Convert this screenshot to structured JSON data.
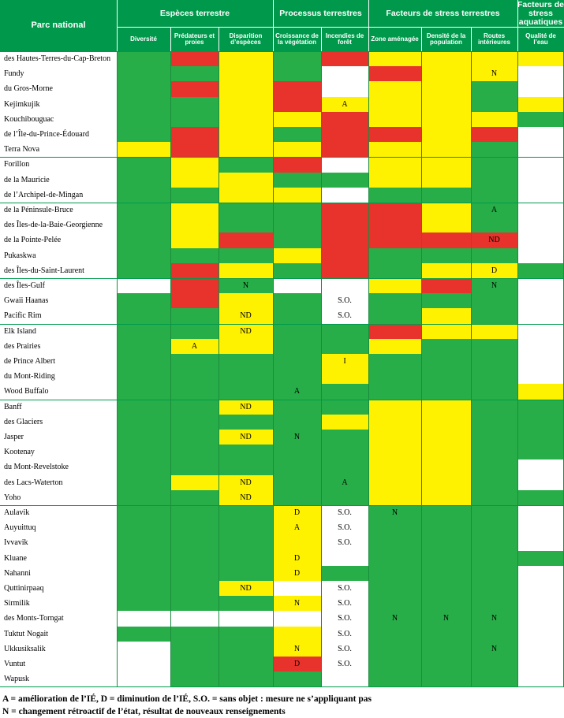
{
  "colors": {
    "header": "#00994c",
    "good": "#27ae48",
    "fair": "#fff200",
    "poor": "#e8322c",
    "none": "#ffffff"
  },
  "header": {
    "corner": "Parc national",
    "groups": [
      "Espèces terrestre",
      "Processus terrestres",
      "Facteurs de stress terrestres",
      "Facteurs de stress aquatiques"
    ],
    "columns": [
      "Diversité",
      "Prédateurs et proies",
      "Disparition d’espèces",
      "Croissance de la végétation",
      "Incendies de forêt",
      "Zone aménagée",
      "Densité de la population",
      "Routes intérieures",
      "Qualité de l’eau"
    ]
  },
  "parks": [
    "des Hautes-Terres-du-Cap-Breton",
    "Fundy",
    "du Gros-Morne",
    "Kejimkujik",
    "Kouchibouguac",
    "de l’Île-du-Prince-Édouard",
    "Terra Nova",
    "Forillon",
    "de la Mauricie",
    "de l’Archipel-de-Mingan",
    "de la Péninsule-Bruce",
    "des Îles-de-la-Baie-Georgienne",
    "de la Pointe-Pelée",
    "Pukaskwa",
    "des Îles-du-Saint-Laurent",
    "des Îles-Gulf",
    "Gwaii Haanas",
    "Pacific Rim",
    "Elk Island",
    "des Prairies",
    "de Prince Albert",
    "du Mont-Riding",
    "Wood Buffalo",
    "Banff",
    "des Glaciers",
    "Jasper",
    "Kootenay",
    "du Mont-Revelstoke",
    "des Lacs-Waterton",
    "Yoho",
    "Aulavik",
    "Auyuittuq",
    "Ivvavik",
    "Kluane",
    "Nahanni",
    "Quttinirpaaq",
    "Sirmilik",
    "des Monts-Torngat",
    "Tuktut Nogait",
    "Ukkusiksalik",
    "Vuntut",
    "Wapusk"
  ],
  "status": [
    "GRYGRYYYY",
    "GGYGWRYYW",
    "GRYRWYYGW",
    "GGYRYYYGY",
    "GGYYRYYYG",
    "GRYGRRYRW",
    "YRYYRYYGW",
    "GYGRWYYGW",
    "GYYGGYYGW",
    "GGYYWGGGW",
    "GYGGRRYGW",
    "GYGGRRYGW",
    "GYRGRRRRW",
    "GGGYRGGGW",
    "GRYGRGYYG",
    "WRGWWYRGW",
    "GRYGWGGGW",
    "GGYGWGYGW",
    "GGYGGRYYW",
    "GYYGGYGGW",
    "GGGGYGGGW",
    "GGGGYGGGW",
    "GGGGGGGGY",
    "GGYGGYYGG",
    "GGGGYYYGG",
    "GGYGGYYGG",
    "GGGGGYYGG",
    "GGGGGYYGW",
    "GYYGGYYGW",
    "GGYGGYYGG",
    "GGGYWGGGW",
    "GGGYWGGGW",
    "GGGYWGGGW",
    "GGGYWGGGG",
    "GGGYGGGGW",
    "GGYWWGGGW",
    "GGGYWGGGW",
    "WWWWWGGGW",
    "GGGYWGGGW",
    "WGGYWGGGW",
    "WGGRWGGGW",
    "WGGGWGGGW"
  ],
  "codes": [
    {
      "r": 1,
      "c": 7,
      "t": "N"
    },
    {
      "r": 3,
      "c": 4,
      "t": "A"
    },
    {
      "r": 10,
      "c": 7,
      "t": "A"
    },
    {
      "r": 12,
      "c": 7,
      "t": "ND"
    },
    {
      "r": 14,
      "c": 7,
      "t": "D"
    },
    {
      "r": 15,
      "c": 2,
      "t": "N"
    },
    {
      "r": 15,
      "c": 7,
      "t": "N"
    },
    {
      "r": 16,
      "c": 4,
      "t": "S.O."
    },
    {
      "r": 17,
      "c": 2,
      "t": "ND"
    },
    {
      "r": 17,
      "c": 4,
      "t": "S.O."
    },
    {
      "r": 18,
      "c": 2,
      "t": "ND"
    },
    {
      "r": 19,
      "c": 1,
      "t": "A"
    },
    {
      "r": 20,
      "c": 4,
      "t": "I"
    },
    {
      "r": 22,
      "c": 3,
      "t": "A"
    },
    {
      "r": 23,
      "c": 2,
      "t": "ND"
    },
    {
      "r": 25,
      "c": 2,
      "t": "ND"
    },
    {
      "r": 25,
      "c": 3,
      "t": "N"
    },
    {
      "r": 28,
      "c": 2,
      "t": "ND"
    },
    {
      "r": 28,
      "c": 4,
      "t": "A"
    },
    {
      "r": 29,
      "c": 2,
      "t": "ND"
    },
    {
      "r": 30,
      "c": 3,
      "t": "D"
    },
    {
      "r": 30,
      "c": 4,
      "t": "S.O."
    },
    {
      "r": 30,
      "c": 5,
      "t": "N"
    },
    {
      "r": 31,
      "c": 3,
      "t": "A"
    },
    {
      "r": 31,
      "c": 4,
      "t": "S.O."
    },
    {
      "r": 32,
      "c": 4,
      "t": "S.O."
    },
    {
      "r": 33,
      "c": 3,
      "t": "D"
    },
    {
      "r": 34,
      "c": 3,
      "t": "D"
    },
    {
      "r": 35,
      "c": 2,
      "t": "ND"
    },
    {
      "r": 35,
      "c": 4,
      "t": "S.O."
    },
    {
      "r": 36,
      "c": 3,
      "t": "N"
    },
    {
      "r": 36,
      "c": 4,
      "t": "S.O."
    },
    {
      "r": 37,
      "c": 4,
      "t": "S.O."
    },
    {
      "r": 37,
      "c": 5,
      "t": "N"
    },
    {
      "r": 37,
      "c": 6,
      "t": "N"
    },
    {
      "r": 37,
      "c": 7,
      "t": "N"
    },
    {
      "r": 38,
      "c": 4,
      "t": "S.O."
    },
    {
      "r": 39,
      "c": 3,
      "t": "N"
    },
    {
      "r": 39,
      "c": 4,
      "t": "S.O."
    },
    {
      "r": 39,
      "c": 7,
      "t": "N"
    },
    {
      "r": 40,
      "c": 3,
      "t": "D"
    },
    {
      "r": 40,
      "c": 4,
      "t": "S.O."
    }
  ],
  "legend": [
    "A = amélioration de l’IÉ, D = diminution de l’IÉ, S.O. = sans objet : mesure ne s’appliquant pas",
    "N = changement rétroactif de l’état, résultat de nouveaux renseignements"
  ]
}
